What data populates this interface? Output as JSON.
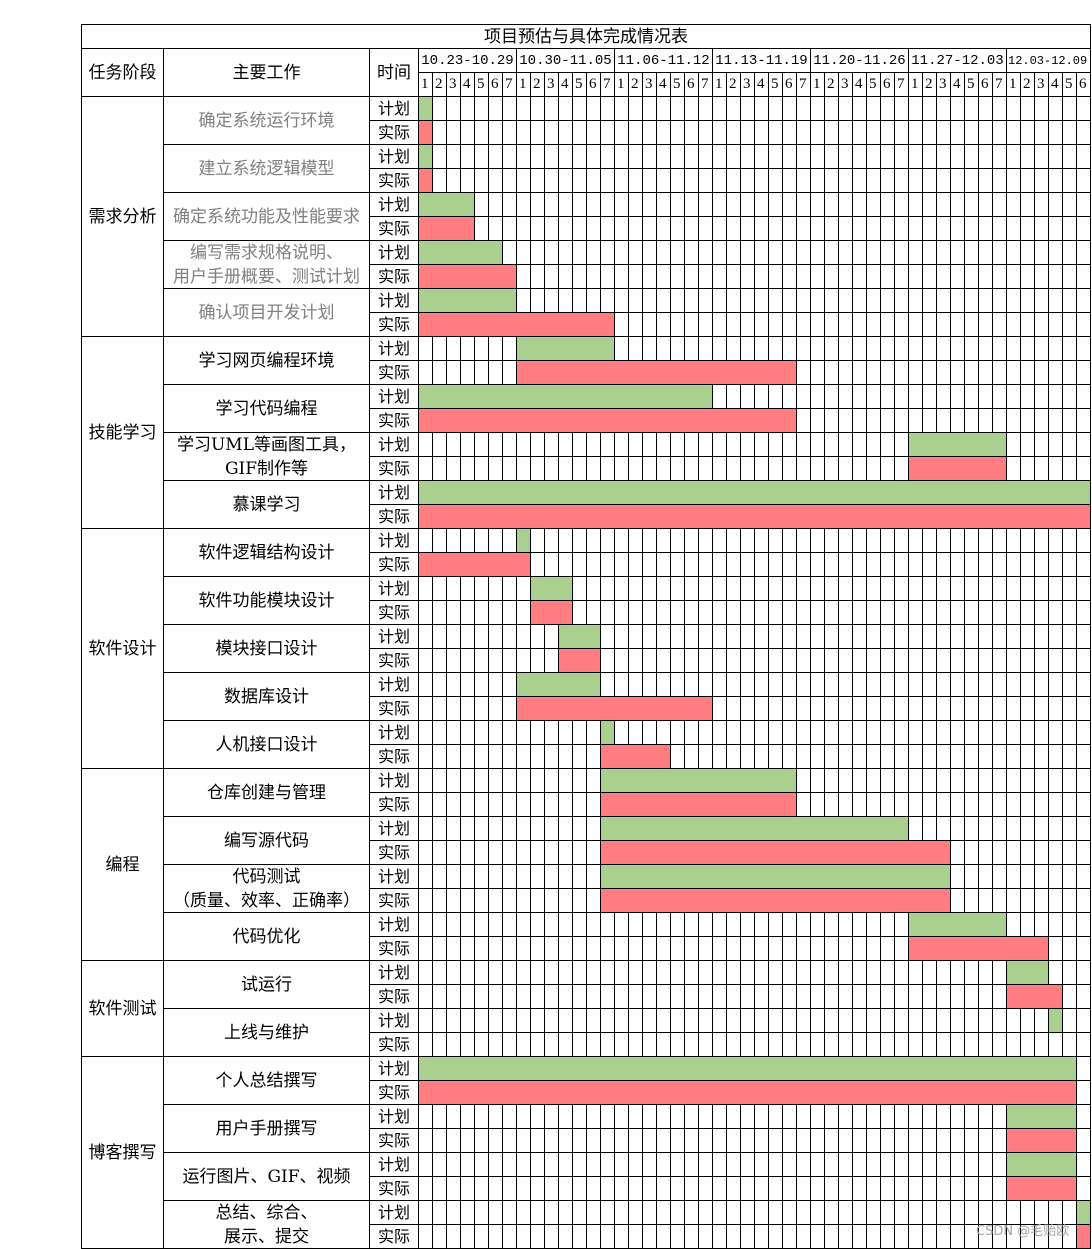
{
  "chart_data": {
    "type": "table",
    "title": "项目预估与具体完成情况表",
    "header": {
      "stage": "任务阶段",
      "task": "主要工作",
      "time": "时间"
    },
    "row_types": {
      "plan": "计划",
      "actual": "实际"
    },
    "weeks": [
      {
        "label": "10.23-10.29",
        "days": [
          1,
          2,
          3,
          4,
          5,
          6,
          7
        ]
      },
      {
        "label": "10.30-11.05",
        "days": [
          1,
          2,
          3,
          4,
          5,
          6,
          7
        ]
      },
      {
        "label": "11.06-11.12",
        "days": [
          1,
          2,
          3,
          4,
          5,
          6,
          7
        ]
      },
      {
        "label": "11.13-11.19",
        "days": [
          1,
          2,
          3,
          4,
          5,
          6,
          7
        ]
      },
      {
        "label": "11.20-11.26",
        "days": [
          1,
          2,
          3,
          4,
          5,
          6,
          7
        ]
      },
      {
        "label": "11.27-12.03",
        "days": [
          1,
          2,
          3,
          4,
          5,
          6,
          7
        ]
      },
      {
        "label": "12.03-12.09",
        "days": [
          1,
          2,
          3,
          4,
          5,
          6
        ]
      }
    ],
    "stages": [
      {
        "name": "需求分析",
        "task_text_color": "#808080",
        "tasks": [
          {
            "name": [
              "确定系统运行环境"
            ],
            "plan": [
              [
                "10.23-10.29",
                1
              ],
              [
                "10.23-10.29",
                1
              ]
            ],
            "actual": [
              [
                "10.23-10.29",
                1
              ],
              [
                "10.23-10.29",
                1
              ]
            ]
          },
          {
            "name": [
              "建立系统逻辑模型"
            ],
            "plan": [
              [
                "10.23-10.29",
                1
              ],
              [
                "10.23-10.29",
                1
              ]
            ],
            "actual": [
              [
                "10.23-10.29",
                1
              ],
              [
                "10.23-10.29",
                1
              ]
            ]
          },
          {
            "name": [
              "确定系统功能及性能要求"
            ],
            "plan": [
              [
                "10.23-10.29",
                1
              ],
              [
                "10.23-10.29",
                4
              ]
            ],
            "actual": [
              [
                "10.23-10.29",
                1
              ],
              [
                "10.23-10.29",
                4
              ]
            ]
          },
          {
            "name": [
              "编写需求规格说明、",
              "用户手册概要、测试计划"
            ],
            "plan": [
              [
                "10.23-10.29",
                1
              ],
              [
                "10.23-10.29",
                6
              ]
            ],
            "actual": [
              [
                "10.23-10.29",
                1
              ],
              [
                "10.23-10.29",
                7
              ]
            ]
          },
          {
            "name": [
              "确认项目开发计划"
            ],
            "plan": [
              [
                "10.23-10.29",
                1
              ],
              [
                "10.23-10.29",
                7
              ]
            ],
            "actual": [
              [
                "10.23-10.29",
                1
              ],
              [
                "10.30-11.05",
                7
              ]
            ]
          }
        ]
      },
      {
        "name": "技能学习",
        "tasks": [
          {
            "name": [
              "学习网页编程环境"
            ],
            "plan": [
              [
                "10.30-11.05",
                1
              ],
              [
                "10.30-11.05",
                7
              ]
            ],
            "actual": [
              [
                "10.30-11.05",
                1
              ],
              [
                "11.13-11.19",
                6
              ]
            ]
          },
          {
            "name": [
              "学习代码编程"
            ],
            "plan": [
              [
                "10.23-10.29",
                1
              ],
              [
                "11.06-11.12",
                7
              ]
            ],
            "actual": [
              [
                "10.23-10.29",
                1
              ],
              [
                "11.13-11.19",
                6
              ]
            ]
          },
          {
            "name": [
              "学习UML等画图工具，",
              "GIF制作等"
            ],
            "plan": [
              [
                "11.27-12.03",
                1
              ],
              [
                "11.27-12.03",
                7
              ]
            ],
            "actual": [
              [
                "11.27-12.03",
                1
              ],
              [
                "11.27-12.03",
                7
              ]
            ]
          },
          {
            "name": [
              "慕课学习"
            ],
            "plan": [
              [
                "10.23-10.29",
                1
              ],
              [
                "12.03-12.09",
                6
              ]
            ],
            "actual": [
              [
                "10.23-10.29",
                1
              ],
              [
                "12.03-12.09",
                6
              ]
            ]
          }
        ]
      },
      {
        "name": "软件设计",
        "tasks": [
          {
            "name": [
              "软件逻辑结构设计"
            ],
            "plan": [
              [
                "10.30-11.05",
                1
              ],
              [
                "10.30-11.05",
                1
              ]
            ],
            "actual": [
              [
                "10.23-10.29",
                1
              ],
              [
                "10.30-11.05",
                1
              ]
            ]
          },
          {
            "name": [
              "软件功能模块设计"
            ],
            "plan": [
              [
                "10.30-11.05",
                2
              ],
              [
                "10.30-11.05",
                4
              ]
            ],
            "actual": [
              [
                "10.30-11.05",
                2
              ],
              [
                "10.30-11.05",
                4
              ]
            ]
          },
          {
            "name": [
              "模块接口设计"
            ],
            "plan": [
              [
                "10.30-11.05",
                4
              ],
              [
                "10.30-11.05",
                6
              ]
            ],
            "actual": [
              [
                "10.30-11.05",
                4
              ],
              [
                "10.30-11.05",
                6
              ]
            ]
          },
          {
            "name": [
              "数据库设计"
            ],
            "plan": [
              [
                "10.30-11.05",
                1
              ],
              [
                "10.30-11.05",
                6
              ]
            ],
            "actual": [
              [
                "10.30-11.05",
                1
              ],
              [
                "11.06-11.12",
                7
              ]
            ]
          },
          {
            "name": [
              "人机接口设计"
            ],
            "plan": [
              [
                "10.30-11.05",
                7
              ],
              [
                "10.30-11.05",
                7
              ]
            ],
            "actual": [
              [
                "10.30-11.05",
                7
              ],
              [
                "11.06-11.12",
                4
              ]
            ]
          }
        ]
      },
      {
        "name": "编程",
        "tasks": [
          {
            "name": [
              "仓库创建与管理"
            ],
            "plan": [
              [
                "10.30-11.05",
                7
              ],
              [
                "11.13-11.19",
                6
              ]
            ],
            "actual": [
              [
                "10.30-11.05",
                7
              ],
              [
                "11.13-11.19",
                6
              ]
            ]
          },
          {
            "name": [
              "编写源代码"
            ],
            "plan": [
              [
                "10.30-11.05",
                7
              ],
              [
                "11.20-11.26",
                7
              ]
            ],
            "actual": [
              [
                "10.30-11.05",
                7
              ],
              [
                "11.27-12.03",
                3
              ]
            ]
          },
          {
            "name": [
              "代码测试",
              "（质量、效率、正确率）"
            ],
            "plan": [
              [
                "10.30-11.05",
                7
              ],
              [
                "11.27-12.03",
                3
              ]
            ],
            "actual": [
              [
                "10.30-11.05",
                7
              ],
              [
                "11.27-12.03",
                3
              ]
            ]
          },
          {
            "name": [
              "代码优化"
            ],
            "plan": [
              [
                "11.27-12.03",
                1
              ],
              [
                "11.27-12.03",
                7
              ]
            ],
            "actual": [
              [
                "11.27-12.03",
                1
              ],
              [
                "12.03-12.09",
                3
              ]
            ]
          }
        ]
      },
      {
        "name": "软件测试",
        "tasks": [
          {
            "name": [
              "试运行"
            ],
            "plan": [
              [
                "12.03-12.09",
                1
              ],
              [
                "12.03-12.09",
                3
              ]
            ],
            "actual": [
              [
                "12.03-12.09",
                1
              ],
              [
                "12.03-12.09",
                4
              ]
            ]
          },
          {
            "name": [
              "上线与维护"
            ],
            "plan": [
              [
                "12.03-12.09",
                4
              ],
              [
                "12.03-12.09",
                4
              ]
            ],
            "actual": null
          }
        ]
      },
      {
        "name": "博客撰写",
        "tasks": [
          {
            "name": [
              "个人总结撰写"
            ],
            "plan": [
              [
                "10.23-10.29",
                1
              ],
              [
                "12.03-12.09",
                5
              ]
            ],
            "actual": [
              [
                "10.23-10.29",
                1
              ],
              [
                "12.03-12.09",
                5
              ]
            ]
          },
          {
            "name": [
              "用户手册撰写"
            ],
            "plan": [
              [
                "12.03-12.09",
                1
              ],
              [
                "12.03-12.09",
                5
              ]
            ],
            "actual": [
              [
                "12.03-12.09",
                1
              ],
              [
                "12.03-12.09",
                5
              ]
            ]
          },
          {
            "name": [
              "运行图片、GIF、视频"
            ],
            "plan": [
              [
                "12.03-12.09",
                1
              ],
              [
                "12.03-12.09",
                5
              ]
            ],
            "actual": [
              [
                "12.03-12.09",
                1
              ],
              [
                "12.03-12.09",
                5
              ]
            ]
          },
          {
            "name": [
              "总结、综合、",
              "展示、提交"
            ],
            "plan": [
              [
                "12.03-12.09",
                6
              ],
              [
                "12.03-12.09",
                6
              ]
            ],
            "actual": [
              [
                "12.03-12.09",
                6
              ],
              [
                "12.03-12.09",
                6
              ]
            ]
          }
        ]
      }
    ]
  },
  "colors": {
    "plan": "#a9d08e",
    "actual": "#ff7c80",
    "watermark": "#a6a6a6"
  },
  "watermark": "CSDN @毛贻欧"
}
